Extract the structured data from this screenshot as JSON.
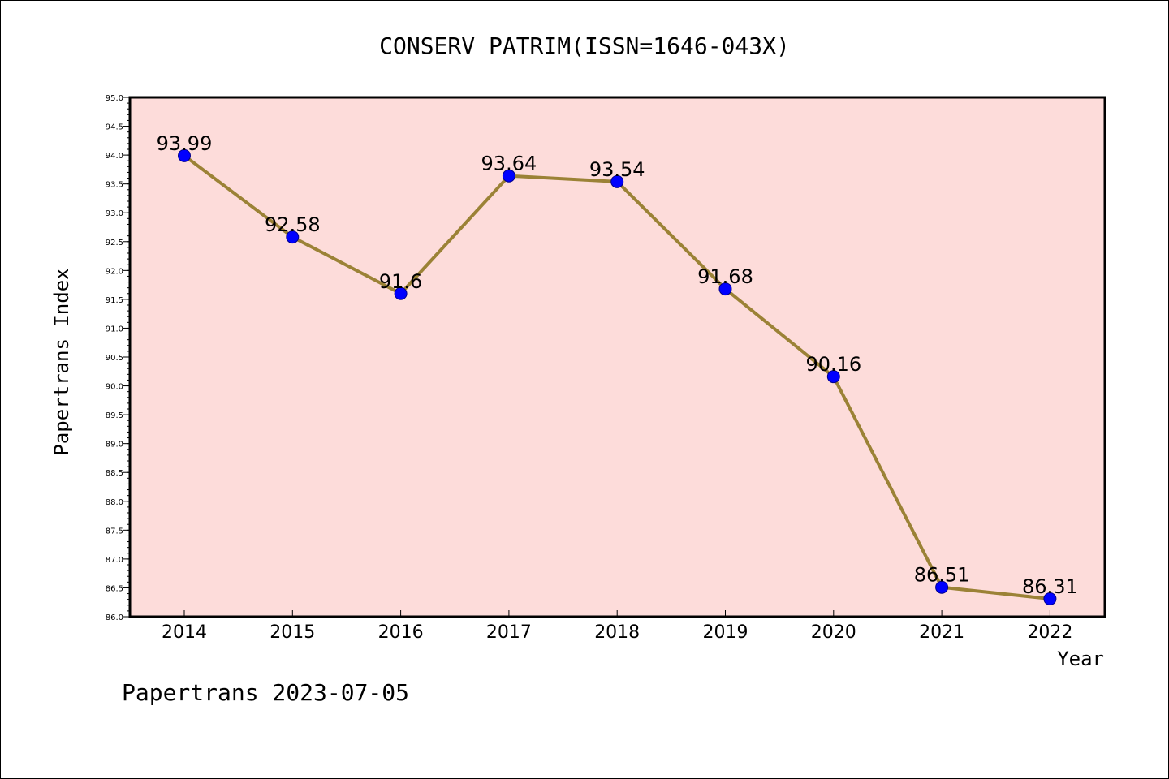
{
  "chart_data": {
    "type": "line",
    "title": "CONSERV PATRIM(ISSN=1646-043X)",
    "xlabel": "Year",
    "ylabel": "Papertrans Index",
    "categories": [
      "2014",
      "2015",
      "2016",
      "2017",
      "2018",
      "2019",
      "2020",
      "2021",
      "2022"
    ],
    "values": [
      93.99,
      92.58,
      91.6,
      93.64,
      93.54,
      91.68,
      90.16,
      86.51,
      86.31
    ],
    "data_labels": [
      "93.99",
      "92.58",
      "91.6",
      "93.64",
      "93.54",
      "91.68",
      "90.16",
      "86.51",
      "86.31"
    ],
    "ylim": [
      86.0,
      95.0
    ],
    "yticks": [
      "86.0",
      "86.5",
      "87.0",
      "87.5",
      "88.0",
      "88.5",
      "89.0",
      "89.5",
      "90.0",
      "90.5",
      "91.0",
      "91.5",
      "92.0",
      "92.5",
      "93.0",
      "93.5",
      "94.0",
      "94.5",
      "95.0"
    ],
    "grid": false,
    "legend": "none",
    "colors": {
      "plot_background": "#fddcda",
      "line": "#9b8236",
      "marker": "#0000ff",
      "axes": "#000000"
    }
  },
  "footer": "Papertrans 2023-07-05"
}
